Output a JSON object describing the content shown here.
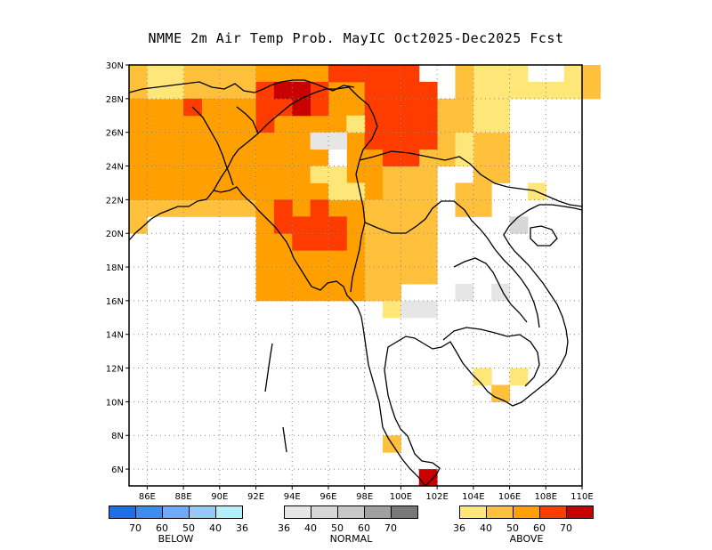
{
  "title": "NMME 2m Air Temp Prob. MayIC  Oct2025-Dec2025 Fcst",
  "axes": {
    "lat_labels": [
      "30N",
      "28N",
      "26N",
      "24N",
      "22N",
      "20N",
      "18N",
      "16N",
      "14N",
      "12N",
      "10N",
      "8N",
      "6N"
    ],
    "lon_labels": [
      "86E",
      "88E",
      "90E",
      "92E",
      "94E",
      "96E",
      "98E",
      "100E",
      "102E",
      "104E",
      "106E",
      "108E",
      "110E"
    ],
    "lon_range": [
      85,
      110
    ],
    "lat_range": [
      5,
      30
    ]
  },
  "legend": {
    "below": {
      "name": "BELOW",
      "values": [
        "70",
        "60",
        "50",
        "40",
        "36"
      ],
      "colors": [
        "#1e6ee6",
        "#3c8cf0",
        "#6eaaf5",
        "#96c8f8",
        "#b4f0fa"
      ]
    },
    "normal": {
      "name": "NORMAL",
      "values": [
        "36",
        "40",
        "50",
        "60",
        "70"
      ],
      "colors": [
        "#e6e6e6",
        "#d7d7d7",
        "#c8c8c8",
        "#a0a0a0",
        "#787878"
      ]
    },
    "above": {
      "name": "ABOVE",
      "values": [
        "36",
        "40",
        "50",
        "60",
        "70"
      ],
      "colors": [
        "#ffe678",
        "#ffc03c",
        "#ffa000",
        "#ff3c00",
        "#c80000"
      ]
    }
  }
}
